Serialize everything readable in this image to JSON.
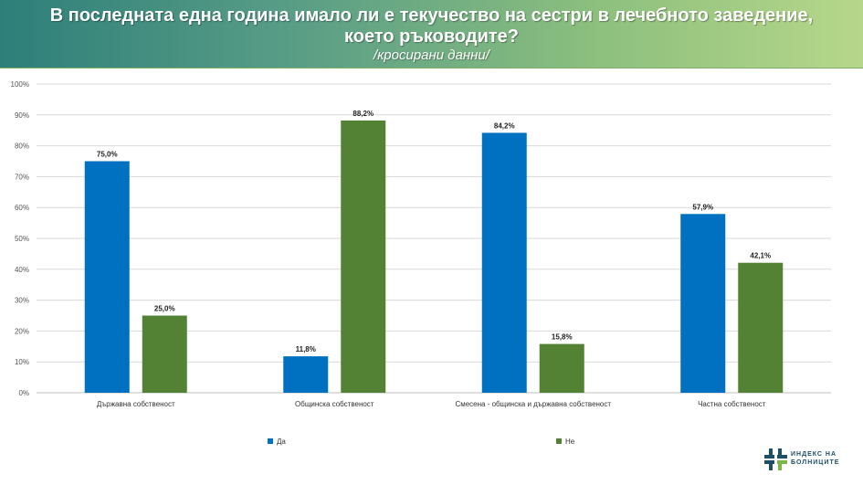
{
  "header": {
    "title": "В последната една година имало ли е текучество на сестри в лечебното заведение, което ръководите?",
    "subtitle": "/кросирани данни/"
  },
  "colors": {
    "series_da": "#0070c0",
    "series_ne": "#548235",
    "banner_start": "#2e7f7a",
    "banner_end": "#b6d78a"
  },
  "chart_data": {
    "type": "bar",
    "categories": [
      "Държавна собственост",
      "Общинска собственост",
      "Смесена - общинска и държавна собственост",
      "Частна собственост"
    ],
    "series": [
      {
        "name": "Да",
        "values": [
          75.0,
          11.8,
          84.2,
          57.9
        ],
        "color": "#0070c0"
      },
      {
        "name": "Не",
        "values": [
          25.0,
          88.2,
          15.8,
          42.1
        ],
        "color": "#548235"
      }
    ],
    "value_labels": {
      "Да": [
        "75,0%",
        "11,8%",
        "84,2%",
        "57,9%"
      ],
      "Не": [
        "25,0%",
        "88,2%",
        "15,8%",
        "42,1%"
      ]
    },
    "yticks": [
      "0%",
      "10%",
      "20%",
      "30%",
      "40%",
      "50%",
      "60%",
      "70%",
      "80%",
      "90%",
      "100%"
    ],
    "ylim": [
      0,
      100
    ],
    "grid": true,
    "legend_position": "bottom"
  },
  "logo": {
    "icon": "hospital-index-logo-icon",
    "line1": "ИНДЕКС НА",
    "line2": "БОЛНИЦИТЕ"
  }
}
